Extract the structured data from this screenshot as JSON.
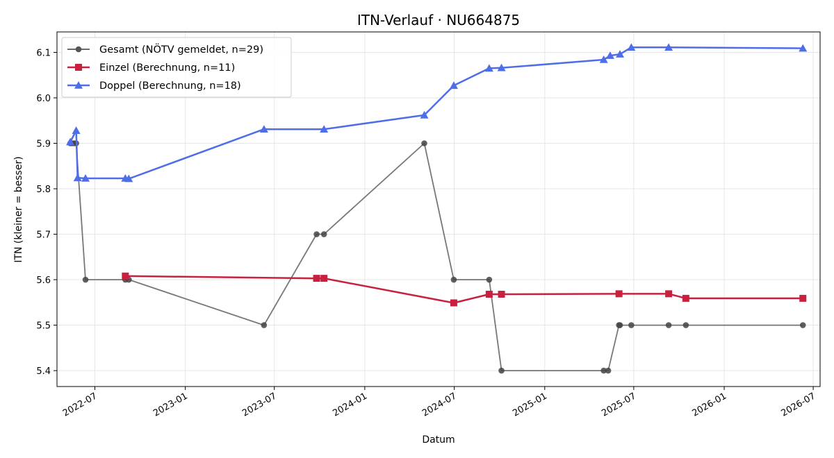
{
  "chart_data": {
    "type": "line",
    "title": "ITN-Verlauf · NU664875",
    "xlabel": "Datum",
    "ylabel": "ITN  (kleiner = besser)",
    "x_type": "date",
    "xlim": [
      "2022-04-15",
      "2026-07-15"
    ],
    "ylim": [
      5.365,
      6.145
    ],
    "x_ticks": [
      "2022-07-01",
      "2023-01-01",
      "2023-07-01",
      "2024-01-01",
      "2024-07-01",
      "2025-01-01",
      "2025-07-01",
      "2026-01-01",
      "2026-07-01"
    ],
    "x_tick_labels": [
      "2022-07",
      "2023-01",
      "2023-07",
      "2024-01",
      "2024-07",
      "2025-01",
      "2025-07",
      "2026-01",
      "2026-07"
    ],
    "y_ticks": [
      5.4,
      5.5,
      5.6,
      5.7,
      5.8,
      5.9,
      6.0,
      6.1
    ],
    "y_tick_labels": [
      "5.4",
      "5.5",
      "5.6",
      "5.7",
      "5.8",
      "5.9",
      "6.0",
      "6.1"
    ],
    "grid": true,
    "legend_position": "top-left",
    "series": [
      {
        "name": "Gesamt (NÖTV gemeldet, n=29)",
        "color": "#555555",
        "marker": "circle",
        "points": [
          [
            "2022-05-12",
            5.9
          ],
          [
            "2022-05-16",
            5.9
          ],
          [
            "2022-05-20",
            5.9
          ],
          [
            "2022-05-24",
            5.9
          ],
          [
            "2022-06-12",
            5.6
          ],
          [
            "2022-09-01",
            5.6
          ],
          [
            "2022-09-08",
            5.6
          ],
          [
            "2023-06-10",
            5.5
          ],
          [
            "2023-09-25",
            5.7
          ],
          [
            "2023-10-10",
            5.7
          ],
          [
            "2024-05-01",
            5.9
          ],
          [
            "2024-06-30",
            5.6
          ],
          [
            "2024-09-10",
            5.6
          ],
          [
            "2024-10-05",
            5.4
          ],
          [
            "2025-05-01",
            5.4
          ],
          [
            "2025-05-10",
            5.4
          ],
          [
            "2025-06-01",
            5.5
          ],
          [
            "2025-06-03",
            5.5
          ],
          [
            "2025-06-26",
            5.5
          ],
          [
            "2025-09-10",
            5.5
          ],
          [
            "2025-10-15",
            5.5
          ],
          [
            "2026-06-10",
            5.5
          ]
        ]
      },
      {
        "name": "Einzel (Berechnung, n=11)",
        "color": "#c8203e",
        "marker": "square",
        "points": [
          [
            "2022-09-01",
            5.608
          ],
          [
            "2023-09-25",
            5.603
          ],
          [
            "2023-10-10",
            5.603
          ],
          [
            "2024-06-30",
            5.549
          ],
          [
            "2024-09-10",
            5.568
          ],
          [
            "2024-10-05",
            5.568
          ],
          [
            "2025-06-01",
            5.569
          ],
          [
            "2025-09-10",
            5.569
          ],
          [
            "2025-10-15",
            5.559
          ],
          [
            "2026-06-10",
            5.559
          ]
        ]
      },
      {
        "name": "Doppel (Berechnung, n=18)",
        "color": "#4e6de8",
        "marker": "triangle",
        "points": [
          [
            "2022-05-12",
            5.903
          ],
          [
            "2022-05-24",
            5.928
          ],
          [
            "2022-05-27",
            5.824
          ],
          [
            "2022-06-12",
            5.823
          ],
          [
            "2022-09-01",
            5.823
          ],
          [
            "2022-09-08",
            5.822
          ],
          [
            "2023-06-10",
            5.931
          ],
          [
            "2023-10-10",
            5.931
          ],
          [
            "2024-05-01",
            5.962
          ],
          [
            "2024-06-30",
            6.027
          ],
          [
            "2024-09-10",
            6.065
          ],
          [
            "2024-10-05",
            6.066
          ],
          [
            "2025-05-01",
            6.084
          ],
          [
            "2025-05-14",
            6.093
          ],
          [
            "2025-06-03",
            6.096
          ],
          [
            "2025-06-26",
            6.111
          ],
          [
            "2025-09-10",
            6.111
          ],
          [
            "2026-06-10",
            6.109
          ]
        ]
      }
    ]
  }
}
